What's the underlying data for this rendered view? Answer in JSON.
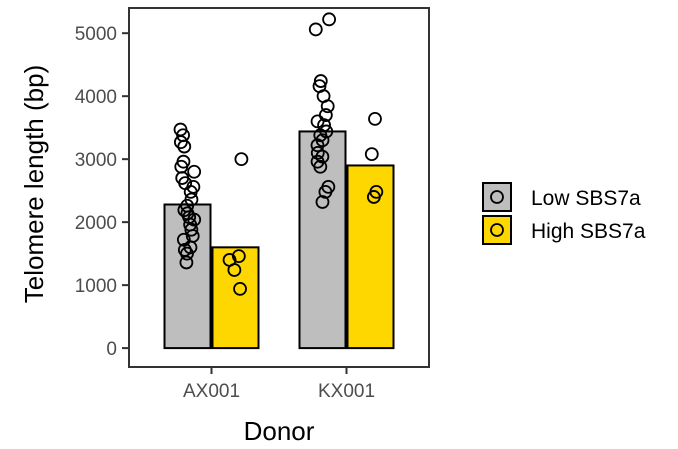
{
  "chart_data": {
    "type": "bar",
    "xlabel": "Donor",
    "ylabel": "Telomere length (bp)",
    "categories": [
      "AX001",
      "KX001"
    ],
    "ylim": [
      -300,
      5400
    ],
    "yticks": [
      0,
      1000,
      2000,
      3000,
      4000,
      5000
    ],
    "grid": false,
    "legend_position": "right",
    "series": [
      {
        "name": "Low SBS7a",
        "color": "#bebebe",
        "values": [
          2280,
          3440
        ],
        "points": [
          [
            3470,
            3380,
            3270,
            3200,
            2960,
            2880,
            2800,
            2700,
            2620,
            2560,
            2480,
            2360,
            2260,
            2190,
            2140,
            2080,
            2040,
            1960,
            1880,
            1780,
            1720,
            1600,
            1560,
            1500,
            1360
          ],
          [
            5220,
            5060,
            4240,
            4160,
            4000,
            3840,
            3700,
            3600,
            3540,
            3440,
            3380,
            3300,
            3220,
            3100,
            3040,
            2960,
            2880,
            2560,
            2480,
            2320
          ]
        ]
      },
      {
        "name": "High SBS7a",
        "color": "#ffd700",
        "values": [
          1600,
          2900
        ],
        "points": [
          [
            3000,
            1460,
            1400,
            1240,
            940
          ],
          [
            3640,
            3080,
            2480,
            2400
          ]
        ]
      }
    ]
  }
}
